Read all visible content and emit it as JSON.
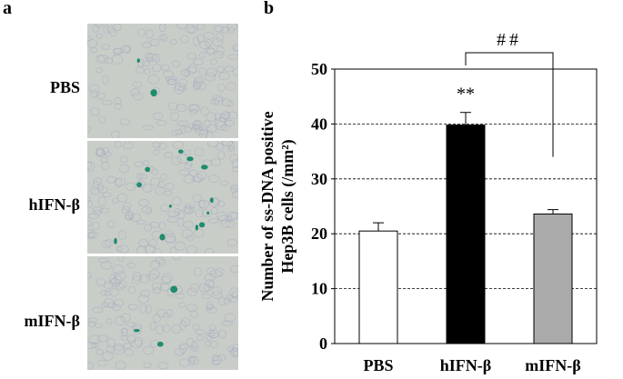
{
  "panel_a": {
    "letter": "a",
    "rows": [
      {
        "label": "PBS",
        "stain": "few"
      },
      {
        "label": "hIFN-β",
        "stain": "many"
      },
      {
        "label": "mIFN-β",
        "stain": "few"
      }
    ]
  },
  "panel_b": {
    "letter": "b"
  },
  "colors": {
    "pbs": "#ffffff",
    "hifn": "#000000",
    "mifn": "#aaaaaa",
    "micro_bg": "#c9cdc8",
    "cell": "#a8aec0",
    "stain": "#1f8c6e"
  },
  "chart_data": {
    "type": "bar",
    "ylabel": "Number of ss-DNA positive Hep3B cells (/mm²)",
    "ylabel_lines": [
      "Number of ss-DNA positive",
      "Hep3B cells (/mm²)"
    ],
    "ylim": [
      0,
      50
    ],
    "yticks": [
      0,
      10,
      20,
      30,
      40,
      50
    ],
    "categories": [
      "PBS",
      "hIFN-β",
      "mIFN-β"
    ],
    "values": [
      20.5,
      39.8,
      23.6
    ],
    "errors": [
      1.5,
      2.3,
      0.8
    ],
    "bar_colors": [
      "#ffffff",
      "#000000",
      "#aaaaaa"
    ],
    "gridlines": [
      10,
      20,
      30,
      40
    ],
    "grid": "dashed horizontal",
    "annotations": [
      {
        "text": "**",
        "category": "hIFN-β"
      },
      {
        "text": "##",
        "between": [
          "hIFN-β",
          "mIFN-β"
        ]
      }
    ]
  }
}
